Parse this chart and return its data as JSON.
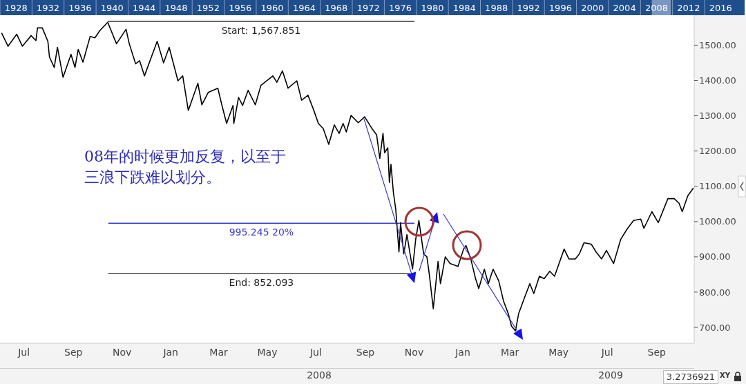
{
  "chart_data": {
    "type": "line",
    "x": [
      "2007-06-03",
      "2007-06-11",
      "2007-06-22",
      "2007-06-29",
      "2007-07-10",
      "2007-07-16",
      "2007-07-18",
      "2007-07-24",
      "2007-07-31",
      "2007-08-02",
      "2007-08-08",
      "2007-08-12",
      "2007-08-19",
      "2007-08-29",
      "2007-09-03",
      "2007-09-07",
      "2007-09-13",
      "2007-09-22",
      "2007-09-28",
      "2007-10-04",
      "2007-10-14",
      "2007-10-25",
      "2007-11-06",
      "2007-11-10",
      "2007-11-18",
      "2007-11-23",
      "2007-11-29",
      "2007-12-15",
      "2007-12-23",
      "2007-12-30",
      "2008-01-10",
      "2008-01-16",
      "2008-01-23",
      "2008-02-04",
      "2008-02-09",
      "2008-02-17",
      "2008-02-29",
      "2008-03-05",
      "2008-03-11",
      "2008-03-19",
      "2008-03-20",
      "2008-03-26",
      "2008-03-31",
      "2008-04-07",
      "2008-04-16",
      "2008-04-23",
      "2008-05-08",
      "2008-05-13",
      "2008-05-20",
      "2008-05-27",
      "2008-06-07",
      "2008-06-13",
      "2008-06-21",
      "2008-06-28",
      "2008-07-04",
      "2008-07-10",
      "2008-07-17",
      "2008-07-24",
      "2008-07-30",
      "2008-08-04",
      "2008-08-08",
      "2008-08-14",
      "2008-08-23",
      "2008-08-31",
      "2008-09-09",
      "2008-09-15",
      "2008-09-19",
      "2008-09-23",
      "2008-09-25",
      "2008-09-29",
      "2008-10-01",
      "2008-10-03",
      "2008-10-06",
      "2008-10-09",
      "2008-10-13",
      "2008-10-15",
      "2008-10-19",
      "2008-10-23",
      "2008-10-30",
      "2008-11-03",
      "2008-11-07",
      "2008-11-13",
      "2008-11-17",
      "2008-11-20",
      "2008-11-25",
      "2008-12-01",
      "2008-12-04",
      "2008-12-10",
      "2008-12-16",
      "2008-12-26",
      "2009-01-02",
      "2009-01-05",
      "2009-01-11",
      "2009-01-17",
      "2009-01-21",
      "2009-01-28",
      "2009-02-02",
      "2009-02-08",
      "2009-02-15",
      "2009-02-21",
      "2009-02-27",
      "2009-03-03",
      "2009-03-08",
      "2009-03-12",
      "2009-03-20",
      "2009-03-26",
      "2009-03-31",
      "2009-04-07",
      "2009-04-13",
      "2009-04-20",
      "2009-04-26",
      "2009-05-08",
      "2009-05-14",
      "2009-05-22",
      "2009-05-27",
      "2009-06-02",
      "2009-06-11",
      "2009-06-17",
      "2009-06-24",
      "2009-06-30",
      "2009-07-09",
      "2009-07-18",
      "2009-07-26",
      "2009-08-03",
      "2009-08-12",
      "2009-08-16",
      "2009-08-26",
      "2009-09-03",
      "2009-09-15",
      "2009-09-23",
      "2009-09-29",
      "2009-10-03",
      "2009-10-10",
      "2009-10-17"
    ],
    "series": [
      {
        "color": "#000000",
        "values": [
          1535,
          1497,
          1531,
          1497,
          1527,
          1513,
          1549,
          1549,
          1511,
          1466,
          1437,
          1494,
          1409,
          1474,
          1437,
          1488,
          1452,
          1525,
          1521,
          1541,
          1565,
          1504,
          1545,
          1504,
          1447,
          1456,
          1413,
          1511,
          1450,
          1494,
          1399,
          1413,
          1315,
          1392,
          1331,
          1366,
          1378,
          1331,
          1278,
          1329,
          1278,
          1352,
          1329,
          1372,
          1331,
          1386,
          1413,
          1395,
          1427,
          1378,
          1399,
          1344,
          1358,
          1317,
          1278,
          1264,
          1219,
          1274,
          1250,
          1278,
          1254,
          1301,
          1280,
          1297,
          1264,
          1246,
          1179,
          1250,
          1195,
          1209,
          1111,
          1162,
          1083,
          1034,
          914,
          997,
          908,
          963,
          865,
          950,
          1003,
          908,
          900,
          851,
          753,
          887,
          824,
          900,
          881,
          873,
          922,
          932,
          894,
          838,
          810,
          865,
          824,
          865,
          832,
          775,
          739,
          704,
          690,
          739,
          788,
          824,
          796,
          845,
          838,
          859,
          845,
          922,
          894,
          894,
          908,
          940,
          936,
          914,
          894,
          918,
          881,
          950,
          979,
          1003,
          1007,
          981,
          1028,
          997,
          1065,
          1065,
          1052,
          1028,
          1073,
          1095
        ]
      }
    ],
    "xlim": [
      "2007-06-01",
      "2009-10-18"
    ],
    "xticks": [
      {
        "value": "2007-07-01",
        "label": "Jul"
      },
      {
        "value": "2007-09-01",
        "label": "Sep"
      },
      {
        "value": "2007-11-01",
        "label": "Nov"
      },
      {
        "value": "2008-01-01",
        "label": "Jan"
      },
      {
        "value": "2008-03-01",
        "label": "Mar"
      },
      {
        "value": "2008-05-01",
        "label": "May"
      },
      {
        "value": "2008-07-01",
        "label": "Jul"
      },
      {
        "value": "2008-09-01",
        "label": "Sep"
      },
      {
        "value": "2008-11-01",
        "label": "Nov"
      },
      {
        "value": "2009-01-01",
        "label": "Jan"
      },
      {
        "value": "2009-03-01",
        "label": "Mar"
      },
      {
        "value": "2009-05-01",
        "label": "May"
      },
      {
        "value": "2009-07-01",
        "label": "Jul"
      },
      {
        "value": "2009-09-01",
        "label": "Sep"
      }
    ],
    "ylim": [
      655,
      1585
    ],
    "yticks": [
      {
        "value": 700,
        "label": "700.00"
      },
      {
        "value": 800,
        "label": "800.00"
      },
      {
        "value": 900,
        "label": "900.00"
      },
      {
        "value": 1000,
        "label": "1000.00"
      },
      {
        "value": 1100,
        "label": "1100.00"
      },
      {
        "value": 1200,
        "label": "1200.00"
      },
      {
        "value": 1300,
        "label": "1300.00"
      },
      {
        "value": 1400,
        "label": "1400.00"
      },
      {
        "value": 1500,
        "label": "1500.00"
      }
    ],
    "x2lim": [
      1926,
      2019
    ],
    "x2ticks": [
      1928,
      1932,
      1936,
      1940,
      1944,
      1948,
      1952,
      1956,
      1960,
      1964,
      1968,
      1972,
      1976,
      1980,
      1984,
      1988,
      1992,
      1996,
      2000,
      2004,
      2008,
      2012,
      2016
    ],
    "ref_lines": [
      {
        "axis": "y",
        "value": 1567.851,
        "label": "Start:   1,567.851",
        "color": "#222222"
      },
      {
        "axis": "y",
        "value": 995.245,
        "label": "995.245    20%",
        "color": "#3a3ad0"
      },
      {
        "axis": "y",
        "value": 852.093,
        "label": "End:   852.093",
        "color": "#222222"
      }
    ],
    "annotations": [
      "08年的时候更加反复，以至于三浪下跌难以划分。",
      "2008",
      "2009",
      "3.2736921",
      "XY"
    ]
  }
}
